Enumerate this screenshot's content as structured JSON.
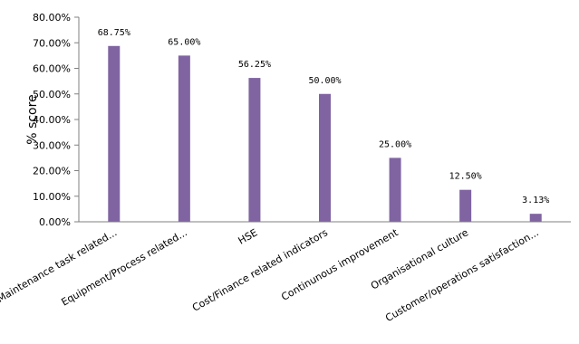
{
  "chart_data": {
    "type": "bar",
    "title": "",
    "xlabel": "",
    "ylabel": "% score",
    "ylim": [
      0,
      80
    ],
    "y_ticks": [
      "0.00%",
      "10.00%",
      "20.00%",
      "30.00%",
      "40.00%",
      "50.00%",
      "60.00%",
      "70.00%",
      "80.00%"
    ],
    "categories": [
      "Maintenance task related...",
      "Equipment/Process related...",
      "HSE",
      "Cost/Finance related indicators",
      "Continunous improvement",
      "Organisational culture",
      "Customer/operations satisfaction..."
    ],
    "values": [
      68.75,
      65.0,
      56.25,
      50.0,
      25.0,
      12.5,
      3.13
    ],
    "data_labels": [
      "68.75%",
      "65.00%",
      "56.25%",
      "50.00%",
      "25.00%",
      "12.50%",
      "3.13%"
    ],
    "bar_color": "#8064a2",
    "axis_color": "#808080",
    "grid": false,
    "legend": "none"
  }
}
